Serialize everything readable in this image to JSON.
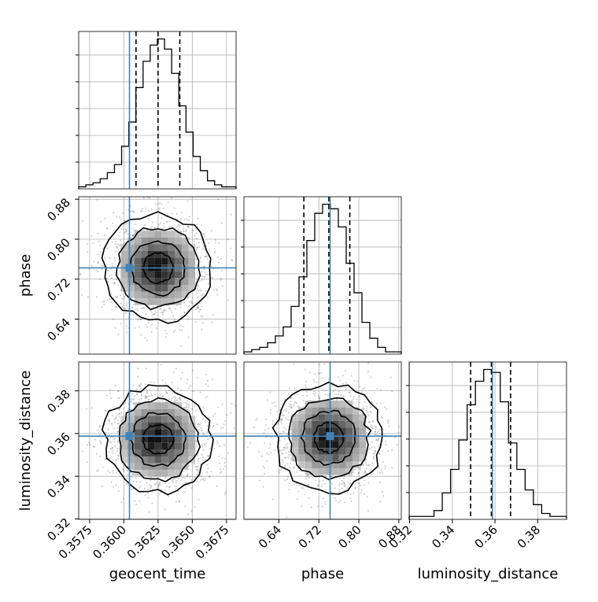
{
  "chart_data": {
    "type": "corner",
    "parameters": [
      {
        "name": "geocent_time",
        "label": "geocent_time",
        "range": [
          0.3567,
          0.3682
        ],
        "ticks": [
          "0.3575",
          "0.3600",
          "0.3625",
          "0.3650",
          "0.3675"
        ],
        "tick_values": [
          0.3575,
          0.36,
          0.3625,
          0.365,
          0.3675
        ],
        "truth": 0.36041,
        "quantiles": [
          0.36089,
          0.3625,
          0.36409
        ],
        "histogram": [
          1,
          2,
          3,
          5,
          8,
          12,
          21,
          33,
          50,
          63,
          71,
          74,
          69,
          57,
          41,
          28,
          16,
          9,
          4,
          2,
          1,
          1
        ]
      },
      {
        "name": "phase",
        "label": "phase",
        "range": [
          0.57,
          0.885
        ],
        "ticks": [
          "0.64",
          "0.72",
          "0.80",
          "0.88"
        ],
        "tick_values": [
          0.64,
          0.72,
          0.8,
          0.88
        ],
        "truth": 0.7425,
        "quantiles": [
          0.69,
          0.74,
          0.782
        ],
        "histogram": [
          1,
          2,
          3,
          5,
          8,
          12,
          21,
          34,
          50,
          62,
          66,
          64,
          56,
          40,
          27,
          14,
          7,
          3,
          1,
          1
        ]
      },
      {
        "name": "luminosity_distance",
        "label": "luminosity_distance",
        "range": [
          0.3198,
          0.3935
        ],
        "ticks": [
          "0.32",
          "0.34",
          "0.36",
          "0.38"
        ],
        "tick_values": [
          0.32,
          0.34,
          0.36,
          0.38
        ],
        "truth": 0.3588,
        "quantiles": [
          0.3486,
          0.3583,
          0.3673
        ],
        "histogram": [
          1,
          1,
          1,
          3,
          9,
          17,
          27,
          39,
          47,
          51,
          50,
          40,
          26,
          17,
          10,
          5,
          2,
          1,
          1
        ]
      }
    ],
    "pairs": [
      {
        "x": "geocent_time",
        "y": "phase",
        "center": [
          0.3625,
          0.7425
        ]
      },
      {
        "x": "geocent_time",
        "y": "luminosity_distance",
        "center": [
          0.3625,
          0.3572
        ]
      },
      {
        "x": "phase",
        "y": "luminosity_distance",
        "center": [
          0.74,
          0.358
        ]
      }
    ],
    "grid": true,
    "truth_color": "#4682b4",
    "quantile_style": "dashed"
  }
}
